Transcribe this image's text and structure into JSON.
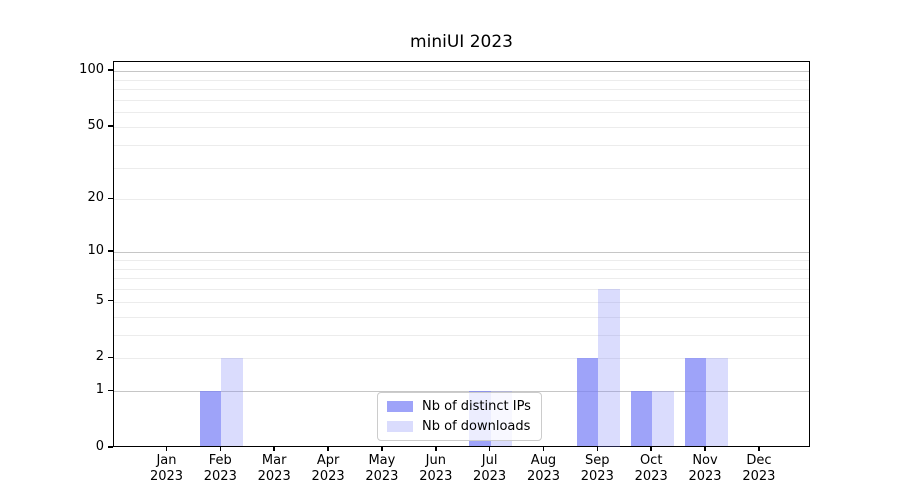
{
  "chart_data": {
    "type": "bar",
    "title": "miniUI 2023",
    "categories": [
      "Jan",
      "Feb",
      "Mar",
      "Apr",
      "May",
      "Jun",
      "Jul",
      "Aug",
      "Sep",
      "Oct",
      "Nov",
      "Dec"
    ],
    "category_year": "2023",
    "series": [
      {
        "name": "Nb of distinct IPs",
        "color": "rgba(121,128,247,0.72)",
        "values": [
          0,
          1,
          0,
          0,
          0,
          0,
          1,
          0,
          2,
          1,
          2,
          0
        ]
      },
      {
        "name": "Nb of downloads",
        "color": "rgba(121,128,247,0.28)",
        "values": [
          0,
          2,
          0,
          0,
          0,
          0,
          1,
          0,
          6,
          1,
          2,
          0
        ]
      }
    ],
    "y_scale": "log(1+v)",
    "ylim": [
      0,
      111.7
    ],
    "y_tick_values": [
      0,
      1,
      2,
      5,
      10,
      20,
      50,
      100
    ],
    "y_major_gridlines": [
      1,
      10,
      100
    ],
    "y_minor_gridlines": [
      2,
      3,
      4,
      5,
      6,
      7,
      8,
      9,
      20,
      30,
      40,
      50,
      60,
      70,
      80,
      90
    ],
    "grid": true,
    "legend_position": "lower center",
    "colors": {
      "bar_dark_hex": "#a5a8f7",
      "bar_light_hex": "#dadcfa",
      "major_grid_hex": "#c6c6c6",
      "minor_grid_hex": "#ececec",
      "axis_hex": "#000000"
    }
  }
}
